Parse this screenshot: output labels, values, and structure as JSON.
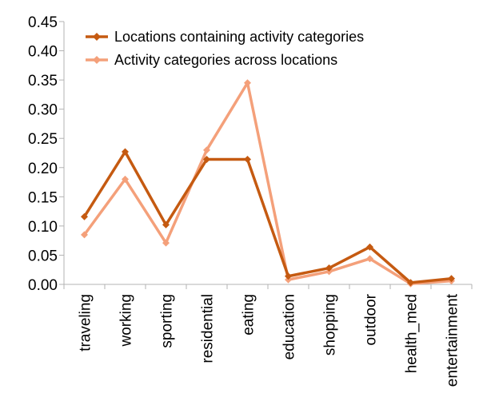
{
  "chart_data": {
    "type": "line",
    "title": "",
    "xlabel": "",
    "ylabel": "",
    "categories": [
      "traveling",
      "working",
      "sporting",
      "residential",
      "eating",
      "education",
      "shopping",
      "outdoor",
      "health_med",
      "entertainment"
    ],
    "series": [
      {
        "name": "Locations containing activity categories",
        "color": "#c55a11",
        "values": [
          0.116,
          0.227,
          0.102,
          0.214,
          0.214,
          0.014,
          0.028,
          0.064,
          0.003,
          0.01
        ]
      },
      {
        "name": "Activity categories across locations",
        "color": "#f4a07a",
        "values": [
          0.085,
          0.18,
          0.071,
          0.23,
          0.345,
          0.008,
          0.022,
          0.044,
          0.001,
          0.006
        ]
      }
    ],
    "ylim": [
      0,
      0.45
    ],
    "yticks": [
      "0.00",
      "0.05",
      "0.10",
      "0.15",
      "0.20",
      "0.25",
      "0.30",
      "0.35",
      "0.40",
      "0.45"
    ],
    "grid": false,
    "legend_position": "top-left inside"
  }
}
